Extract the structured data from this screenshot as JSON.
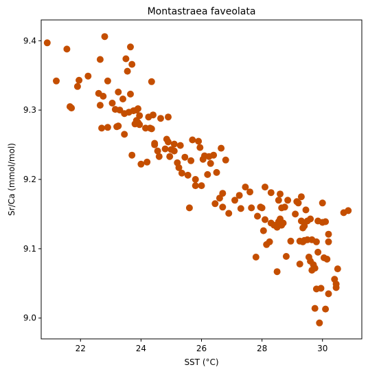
{
  "chart_data": {
    "type": "scatter",
    "title": "Montastraea faveolata",
    "xlabel": "SST (°C)",
    "ylabel": "Sr/Ca (mmol/mol)",
    "xlim": [
      20.7,
      31.3
    ],
    "ylim": [
      8.97,
      9.43
    ],
    "xticks": [
      22,
      24,
      26,
      28,
      30
    ],
    "xtick_labels": [
      "22",
      "24",
      "26",
      "28",
      "30"
    ],
    "yticks": [
      9.0,
      9.1,
      9.2,
      9.3,
      9.4
    ],
    "ytick_labels": [
      "9.0",
      "9.1",
      "9.2",
      "9.3",
      "9.4"
    ],
    "grid": false,
    "marker_color": "#c44e00",
    "points": [
      [
        20.9,
        9.397
      ],
      [
        21.2,
        9.342
      ],
      [
        21.55,
        9.388
      ],
      [
        21.65,
        9.305
      ],
      [
        21.7,
        9.303
      ],
      [
        21.9,
        9.334
      ],
      [
        21.95,
        9.343
      ],
      [
        22.25,
        9.349
      ],
      [
        22.6,
        9.324
      ],
      [
        22.65,
        9.373
      ],
      [
        22.65,
        9.307
      ],
      [
        22.7,
        9.274
      ],
      [
        22.75,
        9.32
      ],
      [
        22.8,
        9.406
      ],
      [
        22.9,
        9.342
      ],
      [
        22.9,
        9.275
      ],
      [
        23.05,
        9.31
      ],
      [
        23.15,
        9.301
      ],
      [
        23.2,
        9.276
      ],
      [
        23.25,
        9.326
      ],
      [
        23.25,
        9.277
      ],
      [
        23.3,
        9.3
      ],
      [
        23.4,
        9.316
      ],
      [
        23.45,
        9.295
      ],
      [
        23.45,
        9.265
      ],
      [
        23.5,
        9.374
      ],
      [
        23.55,
        9.356
      ],
      [
        23.6,
        9.297
      ],
      [
        23.65,
        9.323
      ],
      [
        23.65,
        9.391
      ],
      [
        23.7,
        9.366
      ],
      [
        23.7,
        9.235
      ],
      [
        23.75,
        9.299
      ],
      [
        23.8,
        9.28
      ],
      [
        23.85,
        9.3
      ],
      [
        23.85,
        9.285
      ],
      [
        23.9,
        9.302
      ],
      [
        23.9,
        9.282
      ],
      [
        23.95,
        9.292
      ],
      [
        23.95,
        9.279
      ],
      [
        24.0,
        9.222
      ],
      [
        24.15,
        9.274
      ],
      [
        24.2,
        9.225
      ],
      [
        24.25,
        9.29
      ],
      [
        24.3,
        9.274
      ],
      [
        24.35,
        9.341
      ],
      [
        24.35,
        9.273
      ],
      [
        24.4,
        9.293
      ],
      [
        24.45,
        9.252
      ],
      [
        24.45,
        9.25
      ],
      [
        24.55,
        9.241
      ],
      [
        24.6,
        9.233
      ],
      [
        24.65,
        9.288
      ],
      [
        24.8,
        9.244
      ],
      [
        24.85,
        9.258
      ],
      [
        24.9,
        9.29
      ],
      [
        24.9,
        9.254
      ],
      [
        24.95,
        9.233
      ],
      [
        25.0,
        9.243
      ],
      [
        25.1,
        9.251
      ],
      [
        25.1,
        9.241
      ],
      [
        25.2,
        9.224
      ],
      [
        25.25,
        9.217
      ],
      [
        25.3,
        9.249
      ],
      [
        25.35,
        9.209
      ],
      [
        25.45,
        9.232
      ],
      [
        25.55,
        9.206
      ],
      [
        25.6,
        9.159
      ],
      [
        25.65,
        9.227
      ],
      [
        25.7,
        9.257
      ],
      [
        25.8,
        9.2
      ],
      [
        25.8,
        9.191
      ],
      [
        25.9,
        9.255
      ],
      [
        25.95,
        9.246
      ],
      [
        26.0,
        9.191
      ],
      [
        26.05,
        9.229
      ],
      [
        26.1,
        9.234
      ],
      [
        26.2,
        9.207
      ],
      [
        26.25,
        9.233
      ],
      [
        26.3,
        9.223
      ],
      [
        26.4,
        9.235
      ],
      [
        26.45,
        9.165
      ],
      [
        26.5,
        9.21
      ],
      [
        26.6,
        9.173
      ],
      [
        26.65,
        9.245
      ],
      [
        26.7,
        9.18
      ],
      [
        26.7,
        9.16
      ],
      [
        26.8,
        9.228
      ],
      [
        26.9,
        9.151
      ],
      [
        27.1,
        9.17
      ],
      [
        27.25,
        9.177
      ],
      [
        27.3,
        9.158
      ],
      [
        27.45,
        9.189
      ],
      [
        27.6,
        9.182
      ],
      [
        27.65,
        9.159
      ],
      [
        27.8,
        9.088
      ],
      [
        27.85,
        9.147
      ],
      [
        27.95,
        9.16
      ],
      [
        28.0,
        9.159
      ],
      [
        28.05,
        9.126
      ],
      [
        28.1,
        9.189
      ],
      [
        28.1,
        9.142
      ],
      [
        28.15,
        9.106
      ],
      [
        28.25,
        9.11
      ],
      [
        28.3,
        9.181
      ],
      [
        28.3,
        9.137
      ],
      [
        28.4,
        9.134
      ],
      [
        28.5,
        9.131
      ],
      [
        28.5,
        9.067
      ],
      [
        28.55,
        9.17
      ],
      [
        28.55,
        9.139
      ],
      [
        28.6,
        9.179
      ],
      [
        28.6,
        9.143
      ],
      [
        28.65,
        9.134
      ],
      [
        28.65,
        9.159
      ],
      [
        28.7,
        9.137
      ],
      [
        28.75,
        9.16
      ],
      [
        28.8,
        9.089
      ],
      [
        28.85,
        9.17
      ],
      [
        28.95,
        9.111
      ],
      [
        29.1,
        9.15
      ],
      [
        29.15,
        9.168
      ],
      [
        29.2,
        9.166
      ],
      [
        29.25,
        9.111
      ],
      [
        29.25,
        9.078
      ],
      [
        29.3,
        9.175
      ],
      [
        29.3,
        9.14
      ],
      [
        29.35,
        9.11
      ],
      [
        29.35,
        9.13
      ],
      [
        29.4,
        9.112
      ],
      [
        29.4,
        9.133
      ],
      [
        29.45,
        9.156
      ],
      [
        29.5,
        9.14
      ],
      [
        29.5,
        9.113
      ],
      [
        29.55,
        9.088
      ],
      [
        29.6,
        9.143
      ],
      [
        29.6,
        9.082
      ],
      [
        29.65,
        9.113
      ],
      [
        29.65,
        9.069
      ],
      [
        29.7,
        9.077
      ],
      [
        29.75,
        9.072
      ],
      [
        29.75,
        9.014
      ],
      [
        29.8,
        9.042
      ],
      [
        29.8,
        9.11
      ],
      [
        29.85,
        9.14
      ],
      [
        29.85,
        9.095
      ],
      [
        29.9,
        8.993
      ],
      [
        29.95,
        9.043
      ],
      [
        30.0,
        9.138
      ],
      [
        30.0,
        9.166
      ],
      [
        30.05,
        9.087
      ],
      [
        30.1,
        9.139
      ],
      [
        30.1,
        9.013
      ],
      [
        30.15,
        9.085
      ],
      [
        30.2,
        9.11
      ],
      [
        30.2,
        9.121
      ],
      [
        30.2,
        9.035
      ],
      [
        30.4,
        9.056
      ],
      [
        30.45,
        9.049
      ],
      [
        30.45,
        9.044
      ],
      [
        30.5,
        9.071
      ],
      [
        30.7,
        9.152
      ],
      [
        30.85,
        9.155
      ]
    ]
  }
}
